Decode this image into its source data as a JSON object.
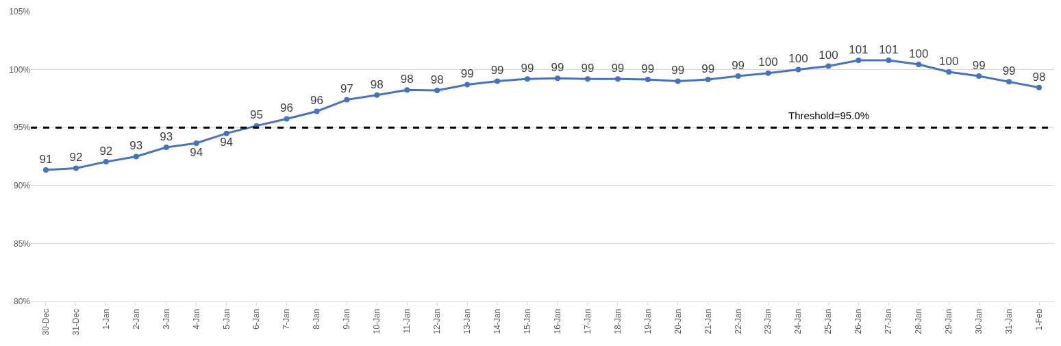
{
  "chart_data": {
    "type": "line",
    "categories": [
      "30-Dec",
      "31-Dec",
      "1-Jan",
      "2-Jan",
      "3-Jan",
      "4-Jan",
      "5-Jan",
      "6-Jan",
      "7-Jan",
      "8-Jan",
      "9-Jan",
      "10-Jan",
      "11-Jan",
      "12-Jan",
      "13-Jan",
      "14-Jan",
      "15-Jan",
      "16-Jan",
      "17-Jan",
      "18-Jan",
      "19-Jan",
      "20-Jan",
      "21-Jan",
      "22-Jan",
      "23-Jan",
      "24-Jan",
      "25-Jan",
      "26-Jan",
      "27-Jan",
      "28-Jan",
      "29-Jan",
      "30-Jan",
      "31-Jan",
      "1-Feb"
    ],
    "series": [
      {
        "color": "#4472c4",
        "values": [
          91.35,
          91.5,
          92.05,
          92.5,
          93.3,
          93.65,
          94.5,
          95.15,
          95.75,
          96.4,
          97.4,
          97.8,
          98.25,
          98.2,
          98.7,
          99.0,
          99.2,
          99.25,
          99.2,
          99.2,
          99.15,
          99.0,
          99.15,
          99.45,
          99.7,
          100.0,
          100.3,
          100.8,
          100.8,
          100.45,
          99.8,
          99.45,
          98.95,
          98.45
        ],
        "value_labels": [
          "91",
          "92",
          "92",
          "93",
          "93",
          "94",
          "94",
          "95",
          "96",
          "96",
          "97",
          "98",
          "98",
          "98",
          "99",
          "99",
          "99",
          "99",
          "99",
          "99",
          "99",
          "99",
          "99",
          "99",
          "100",
          "100",
          "100",
          "101",
          "101",
          "100",
          "100",
          "99",
          "99",
          "98"
        ]
      }
    ],
    "ylim": [
      80,
      105
    ],
    "yticks": [
      {
        "value": 80,
        "label": "80%"
      },
      {
        "value": 85,
        "label": "85%"
      },
      {
        "value": 90,
        "label": "90%"
      },
      {
        "value": 95,
        "label": "95%"
      },
      {
        "value": 100,
        "label": "100%"
      },
      {
        "value": 105,
        "label": "105%"
      }
    ],
    "grid": "y",
    "marker": "circle",
    "line_style": "solid",
    "ref_lines": [
      {
        "axis": "y",
        "value": 95,
        "label": "Threshold=95.0%",
        "color": "#000000",
        "line_style": "dashed"
      }
    ]
  }
}
